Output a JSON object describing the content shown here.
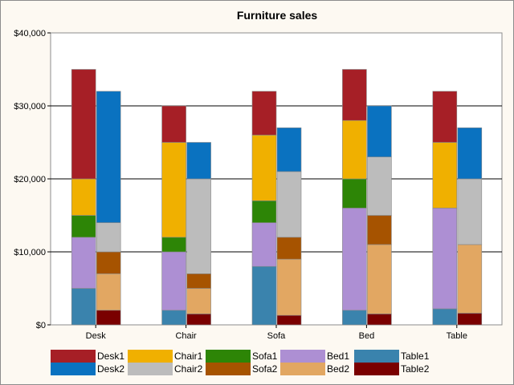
{
  "chart_data": {
    "type": "bar",
    "stacked": true,
    "title": "Furniture sales",
    "categories": [
      "Desk",
      "Chair",
      "Sofa",
      "Bed",
      "Table"
    ],
    "ylim": [
      0,
      40000
    ],
    "yticks": [
      0,
      10000,
      20000,
      30000,
      40000
    ],
    "ytick_labels": [
      "$0",
      "$10,000",
      "$20,000",
      "$30,000",
      "$40,000"
    ],
    "grid": true,
    "legend_position": "bottom",
    "stacks": [
      {
        "name": "stack1",
        "series": [
          {
            "name": "Table1",
            "color": "#3a83ad",
            "values": [
              5000,
              2000,
              8000,
              2000,
              2200
            ]
          },
          {
            "name": "Bed1",
            "color": "#ad8fd3",
            "values": [
              7000,
              8000,
              6000,
              14000,
              13800
            ]
          },
          {
            "name": "Sofa1",
            "color": "#2d8506",
            "values": [
              3000,
              2000,
              3000,
              4000,
              0
            ]
          },
          {
            "name": "Chair1",
            "color": "#f0b000",
            "values": [
              5000,
              13000,
              9000,
              8000,
              9000
            ]
          },
          {
            "name": "Desk1",
            "color": "#a61f26",
            "values": [
              15000,
              5000,
              6000,
              7000,
              7000
            ]
          }
        ]
      },
      {
        "name": "stack2",
        "series": [
          {
            "name": "Table2",
            "color": "#7a0000",
            "values": [
              2000,
              1500,
              1300,
              1500,
              1600
            ]
          },
          {
            "name": "Bed2",
            "color": "#e2a762",
            "values": [
              5000,
              3500,
              7700,
              9500,
              9400
            ]
          },
          {
            "name": "Sofa2",
            "color": "#a65300",
            "values": [
              3000,
              2000,
              3000,
              4000,
              0
            ]
          },
          {
            "name": "Chair2",
            "color": "#bcbcbc",
            "values": [
              4000,
              13000,
              9000,
              8000,
              9000
            ]
          },
          {
            "name": "Desk2",
            "color": "#0a72c0",
            "values": [
              18000,
              5000,
              6000,
              7000,
              7000
            ]
          }
        ]
      }
    ],
    "legend": [
      {
        "name": "Desk1",
        "color": "#a61f26"
      },
      {
        "name": "Chair1",
        "color": "#f0b000"
      },
      {
        "name": "Sofa1",
        "color": "#2d8506"
      },
      {
        "name": "Bed1",
        "color": "#ad8fd3"
      },
      {
        "name": "Table1",
        "color": "#3a83ad"
      },
      {
        "name": "Desk2",
        "color": "#0a72c0"
      },
      {
        "name": "Chair2",
        "color": "#bcbcbc"
      },
      {
        "name": "Sofa2",
        "color": "#a65300"
      },
      {
        "name": "Bed2",
        "color": "#e2a762"
      },
      {
        "name": "Table2",
        "color": "#7a0000"
      }
    ]
  }
}
